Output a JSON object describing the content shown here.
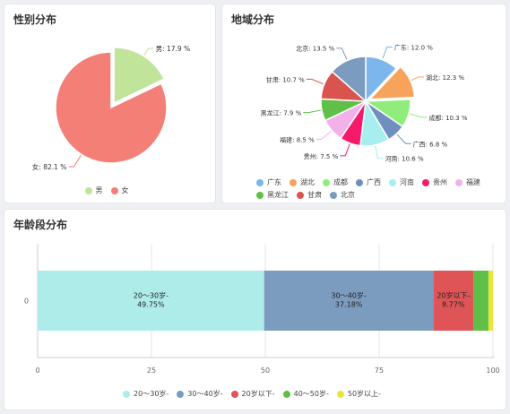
{
  "charts": {
    "gender": {
      "title": "性别分布",
      "chart_data": {
        "type": "pie",
        "categories": [
          "男",
          "女"
        ],
        "values": [
          17.9,
          82.1
        ],
        "labels": [
          "男: 17.9 %",
          "女: 82.1 %"
        ],
        "colors": [
          "#bfe49a",
          "#f47f76"
        ],
        "legend": "bottom"
      }
    },
    "region": {
      "title": "地域分布",
      "chart_data": {
        "type": "pie",
        "categories": [
          "广东",
          "湖北",
          "成都",
          "广西",
          "河南",
          "贵州",
          "福建",
          "黑龙江",
          "甘肃",
          "北京"
        ],
        "values": [
          12.0,
          12.3,
          10.3,
          6.8,
          10.6,
          7.5,
          8.5,
          7.9,
          10.7,
          13.5
        ],
        "labels": [
          "广东: 12.0 %",
          "湖北: 12.3 %",
          "成都: 10.3 %",
          "广西: 6.8 %",
          "河南: 10.6 %",
          "贵州: 7.5 %",
          "福建: 8.5 %",
          "黑龙江: 7.9 %",
          "甘肃: 10.7 %",
          "北京: 13.5 %"
        ],
        "colors": [
          "#7cb6ec",
          "#f7a35c",
          "#90ed7d",
          "#6f8fc0",
          "#a6eef0",
          "#f51b6a",
          "#f3b1ea",
          "#5fbf47",
          "#d9534f",
          "#7b9cbf"
        ],
        "legend": "bottom"
      }
    },
    "age": {
      "title": "年龄段分布",
      "chart_data": {
        "type": "bar",
        "orientation": "horizontal-stacked",
        "categories": [
          "0"
        ],
        "series": [
          {
            "name": "20～30岁-",
            "values": [
              49.75
            ],
            "label": "20～30岁-\n49.75%",
            "color": "#aeecea"
          },
          {
            "name": "30～40岁-",
            "values": [
              37.18
            ],
            "label": "30～40岁-\n37.18%",
            "color": "#7b9cbf"
          },
          {
            "name": "20岁以下-",
            "values": [
              8.77
            ],
            "label": "20岁以下-\n8.77%",
            "color": "#df5456"
          },
          {
            "name": "40～50岁-",
            "values": [
              3.3
            ],
            "label": "",
            "color": "#5fbf47"
          },
          {
            "name": "50岁以上-",
            "values": [
              1.0
            ],
            "label": "",
            "color": "#e6e63e"
          }
        ],
        "xlim": [
          0,
          100
        ],
        "xticks": [
          "0",
          "25",
          "50",
          "75",
          "100"
        ],
        "legend": "bottom"
      }
    }
  }
}
